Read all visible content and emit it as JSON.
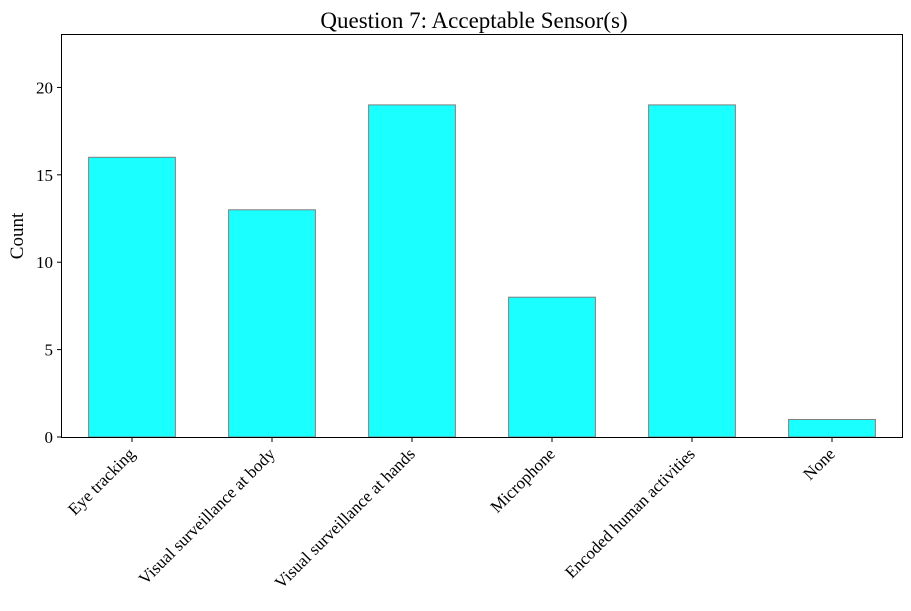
{
  "chart_data": {
    "type": "bar",
    "title": "Question 7: Acceptable Sensor(s)",
    "xlabel": "",
    "ylabel": "Count",
    "categories": [
      "Eye tracking",
      "Visual surveillance at body",
      "Visual surveillance at hands",
      "Microphone",
      "Encoded human activities",
      "None"
    ],
    "values": [
      16,
      13,
      19,
      8,
      19,
      1
    ],
    "ylim": [
      0,
      23
    ],
    "yticks": [
      0,
      5,
      10,
      15,
      20
    ],
    "grid": false,
    "legend": "none",
    "colors": {
      "bar_fill": "#1affff",
      "bar_edge": "#7f7f7f",
      "axis": "#000000"
    }
  }
}
